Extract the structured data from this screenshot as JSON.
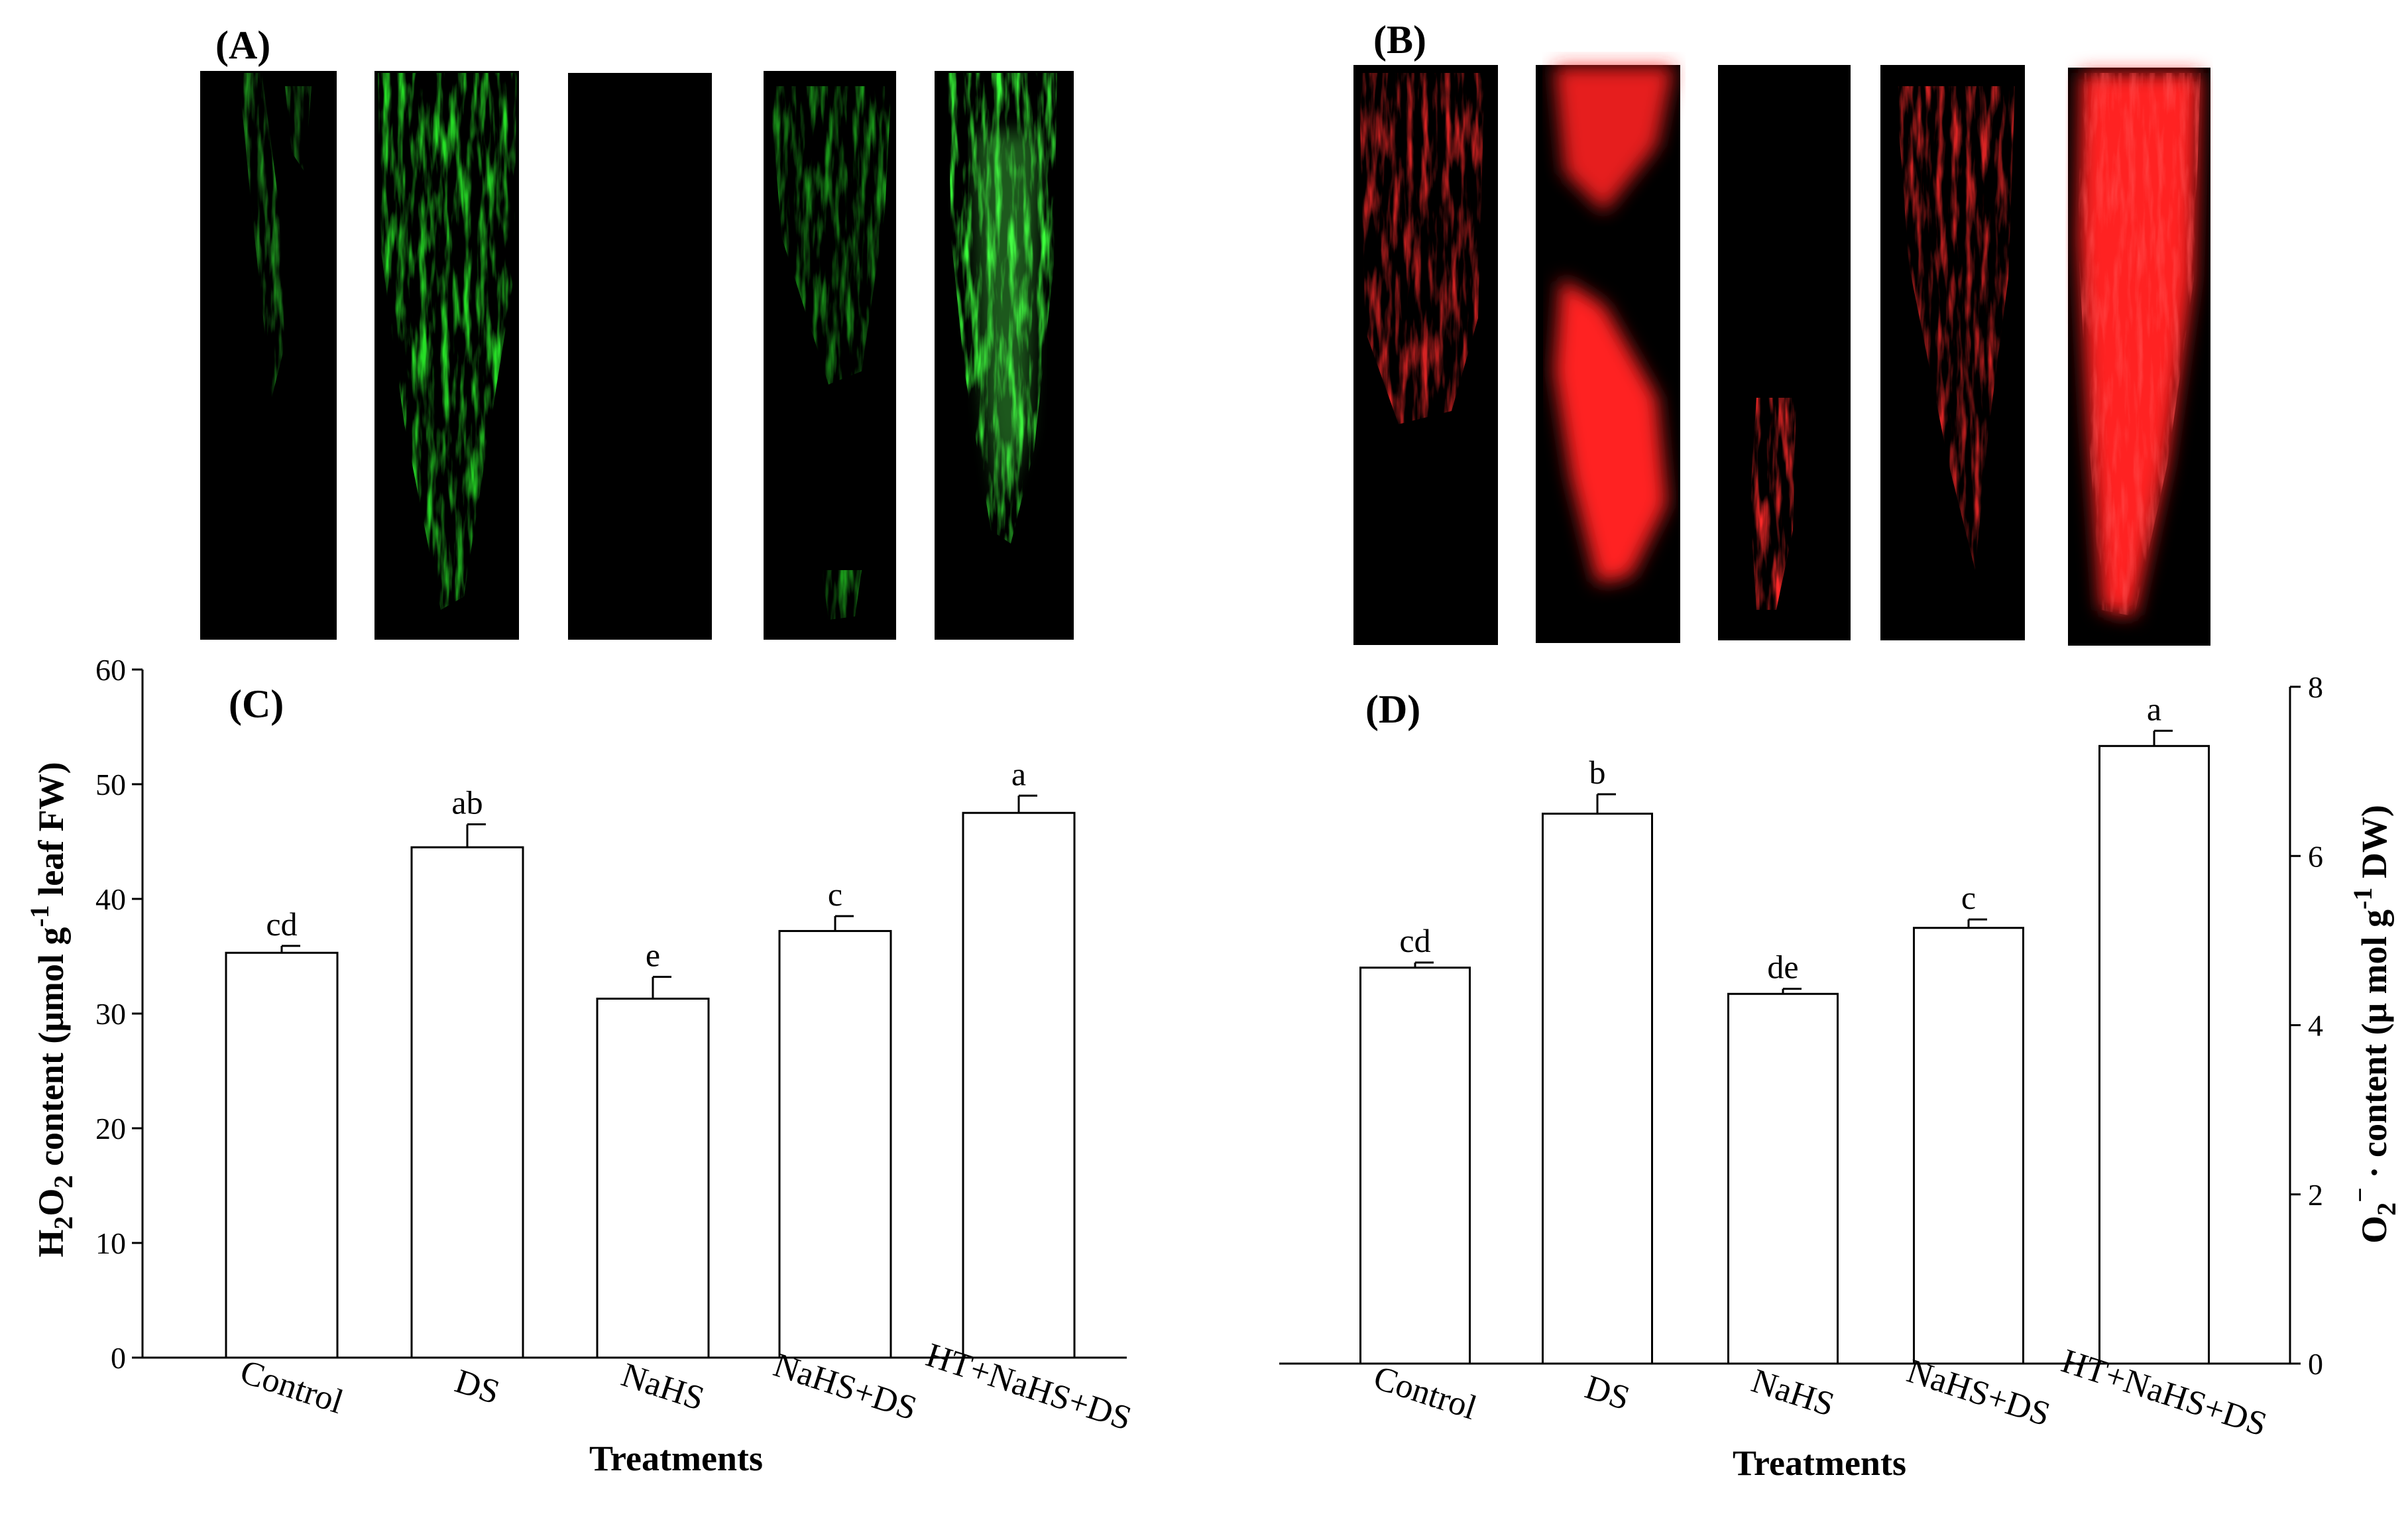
{
  "panels": {
    "A": {
      "label": "(A)",
      "tint": "#22e022"
    },
    "B": {
      "label": "(B)",
      "tint": "#ff2020"
    }
  },
  "chart_data": [
    {
      "type": "bar",
      "panel_label": "(C)",
      "title": "",
      "categories": [
        "Control",
        "DS",
        "NaHS",
        "NaHS+DS",
        "HT+NaHS+DS"
      ],
      "values": [
        35.3,
        44.5,
        31.3,
        37.2,
        47.5
      ],
      "errors": [
        0.6,
        2.0,
        1.9,
        1.3,
        1.5
      ],
      "significance": [
        "cd",
        "ab",
        "e",
        "c",
        "a"
      ],
      "xlabel": "Treatments",
      "ylabel": {
        "pre": "H",
        "sub1": "2",
        "mid": "O",
        "sub2": "2",
        "rest": " content (μmol g",
        "sup": "-1",
        "post": " leaf FW)"
      },
      "ylim": [
        0,
        60
      ],
      "yticks": [
        0,
        10,
        20,
        30,
        40,
        50,
        60
      ],
      "y_axis_side": "left",
      "grid": false,
      "bar_fill": "#ffffff",
      "bar_stroke": "#000000"
    },
    {
      "type": "bar",
      "panel_label": "(D)",
      "title": "",
      "categories": [
        "Control",
        "DS",
        "NaHS",
        "NaHS+DS",
        "HT+NaHS+DS"
      ],
      "values": [
        4.68,
        6.5,
        4.37,
        5.15,
        7.3
      ],
      "errors": [
        0.06,
        0.23,
        0.06,
        0.1,
        0.18
      ],
      "significance": [
        "cd",
        "b",
        "de",
        "c",
        "a"
      ],
      "xlabel": "Treatments",
      "ylabel": {
        "pre": "O",
        "sub1": "2",
        "sup1": "−",
        "dot": " ·",
        "rest": " content  (μ mol g",
        "sup": "-1",
        "post": " DW)"
      },
      "ylim": [
        0,
        8
      ],
      "yticks": [
        0,
        2,
        4,
        6,
        8
      ],
      "y_axis_side": "right",
      "grid": false,
      "bar_fill": "#ffffff",
      "bar_stroke": "#000000"
    }
  ]
}
